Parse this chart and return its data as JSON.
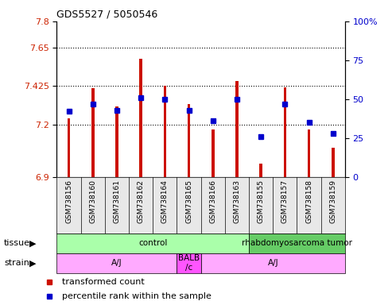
{
  "title": "GDS5527 / 5050546",
  "samples": [
    "GSM738156",
    "GSM738160",
    "GSM738161",
    "GSM738162",
    "GSM738164",
    "GSM738165",
    "GSM738166",
    "GSM738163",
    "GSM738155",
    "GSM738157",
    "GSM738158",
    "GSM738159"
  ],
  "bar_values": [
    7.24,
    7.415,
    7.31,
    7.585,
    7.425,
    7.32,
    7.175,
    7.455,
    6.975,
    7.42,
    7.175,
    7.07
  ],
  "dot_values": [
    42,
    47,
    43,
    51,
    50,
    43,
    36,
    50,
    26,
    47,
    35,
    28
  ],
  "ylim": [
    6.9,
    7.8
  ],
  "yticks": [
    6.9,
    7.2,
    7.425,
    7.65,
    7.8
  ],
  "ytick_labels": [
    "6.9",
    "7.2",
    "7.425",
    "7.65",
    "7.8"
  ],
  "y2lim": [
    0,
    100
  ],
  "y2ticks": [
    0,
    25,
    50,
    75,
    100
  ],
  "y2tick_labels": [
    "0",
    "25",
    "50",
    "75",
    "100%"
  ],
  "hlines": [
    7.2,
    7.425,
    7.65
  ],
  "bar_color": "#cc1100",
  "dot_color": "#0000cc",
  "tissue_labels": [
    {
      "text": "control",
      "xstart": 0,
      "xend": 8,
      "color": "#aaffaa"
    },
    {
      "text": "rhabdomyosarcoma tumor",
      "xstart": 8,
      "xend": 12,
      "color": "#66cc66"
    }
  ],
  "strain_labels": [
    {
      "text": "A/J",
      "xstart": 0,
      "xend": 5,
      "color": "#ffaaff"
    },
    {
      "text": "BALB\n/c",
      "xstart": 5,
      "xend": 6,
      "color": "#ff55ff"
    },
    {
      "text": "A/J",
      "xstart": 6,
      "xend": 12,
      "color": "#ffaaff"
    }
  ],
  "tissue_row_label": "tissue",
  "strain_row_label": "strain",
  "legend_bar_label": "transformed count",
  "legend_dot_label": "percentile rank within the sample",
  "tick_label_color_left": "#cc2200",
  "tick_label_color_right": "#0000cc",
  "bg_color": "#e8e8e8"
}
